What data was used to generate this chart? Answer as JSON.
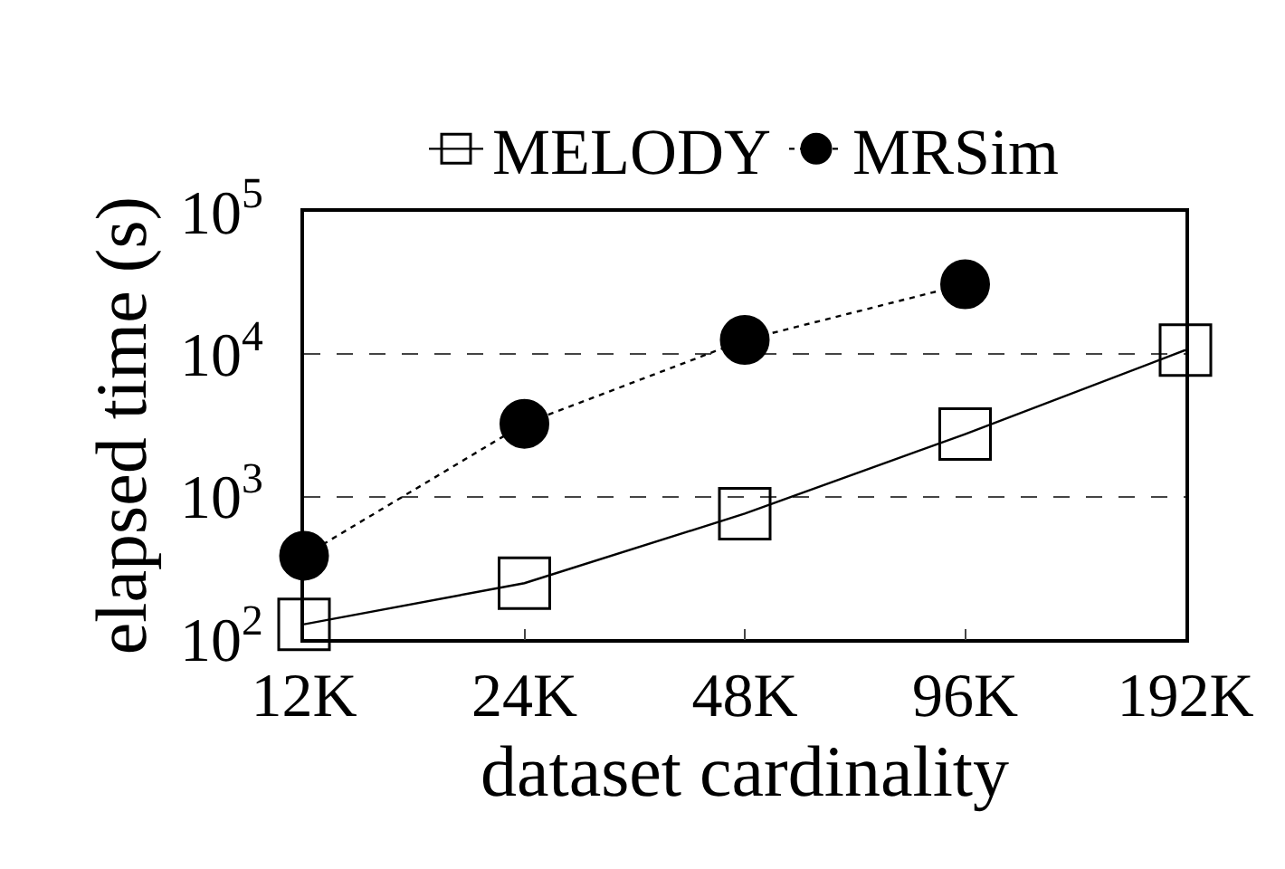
{
  "chart_data": {
    "type": "line",
    "xlabel": "dataset cardinality",
    "ylabel": "elapsed time (s)",
    "categories": [
      "12K",
      "24K",
      "48K",
      "96K",
      "192K"
    ],
    "series": [
      {
        "name": "MELODY",
        "color": "#000000",
        "marker": "square",
        "line_style": "solid",
        "values": [
          127,
          247,
          760,
          2750,
          10700
        ]
      },
      {
        "name": "MRSim",
        "color": "#000000",
        "marker": "circle",
        "line_style": "dotted",
        "values": [
          385,
          3250,
          12600,
          31000,
          null
        ]
      }
    ],
    "log": "y",
    "ylim": [
      100,
      100000
    ],
    "yticks": [
      {
        "value": 100,
        "label": "10$^{2}$"
      },
      {
        "value": 1000,
        "label": "10$^{3}$"
      },
      {
        "value": 10000,
        "label": "10$^{4}$"
      },
      {
        "value": 100000,
        "label": "10$^{5}$"
      }
    ],
    "grid": "y",
    "legend": "top"
  }
}
